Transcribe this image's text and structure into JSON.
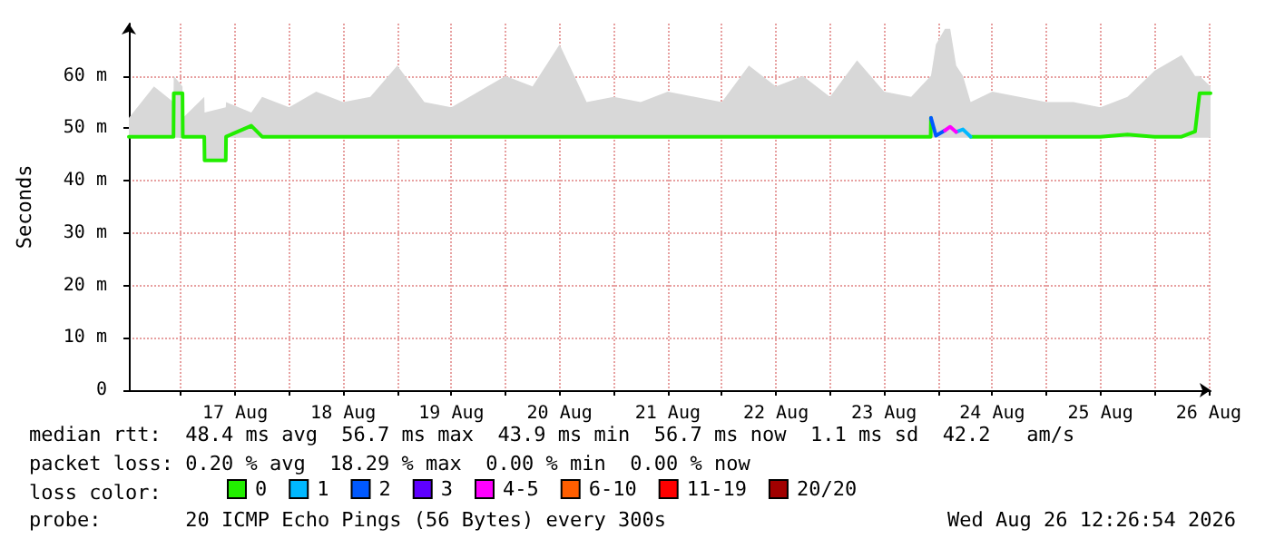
{
  "chart_data": {
    "type": "line",
    "ylabel": "Seconds",
    "legend_title": "loss color:",
    "legend": "bottom",
    "grid": true,
    "marker": "none",
    "line_style": "solid",
    "annotations": [
      "median rtt:  48.4 ms avg  56.7 ms max  43.9 ms min  56.7 ms now  1.1 ms sd  42.2   am/s",
      "packet loss: 0.20 % avg  18.29 % max  0.00 % min  0.00 % now",
      "probe:       20 ICMP Echo Pings (56 Bytes) every 300s",
      "Wed Aug 26 12:26:54 2026"
    ],
    "xlim": [
      "2026-08-16T12:26",
      "2026-08-26T12:26"
    ],
    "xticks": [
      {
        "value": "2026-08-17T00:00",
        "label": null
      },
      {
        "value": "2026-08-17T12:00",
        "label": "17 Aug"
      },
      {
        "value": "2026-08-18T00:00",
        "label": null
      },
      {
        "value": "2026-08-18T12:00",
        "label": "18 Aug"
      },
      {
        "value": "2026-08-19T00:00",
        "label": null
      },
      {
        "value": "2026-08-19T12:00",
        "label": "19 Aug"
      },
      {
        "value": "2026-08-20T00:00",
        "label": null
      },
      {
        "value": "2026-08-20T12:00",
        "label": "20 Aug"
      },
      {
        "value": "2026-08-21T00:00",
        "label": null
      },
      {
        "value": "2026-08-21T12:00",
        "label": "21 Aug"
      },
      {
        "value": "2026-08-22T00:00",
        "label": null
      },
      {
        "value": "2026-08-22T12:00",
        "label": "22 Aug"
      },
      {
        "value": "2026-08-23T00:00",
        "label": null
      },
      {
        "value": "2026-08-23T12:00",
        "label": "23 Aug"
      },
      {
        "value": "2026-08-24T00:00",
        "label": null
      },
      {
        "value": "2026-08-24T12:00",
        "label": "24 Aug"
      },
      {
        "value": "2026-08-25T00:00",
        "label": null
      },
      {
        "value": "2026-08-25T12:00",
        "label": "25 Aug"
      },
      {
        "value": "2026-08-26T00:00",
        "label": null
      },
      {
        "value": "2026-08-26T12:00",
        "label": "26 Aug"
      }
    ],
    "ylim": [
      0,
      70
    ],
    "yticks": [
      0,
      {
        "value": 10,
        "label": "10 m"
      },
      {
        "value": 20,
        "label": "20 m"
      },
      {
        "value": 30,
        "label": "30 m"
      },
      {
        "value": 40,
        "label": "40 m"
      },
      {
        "value": 50,
        "label": "50 m"
      },
      {
        "value": 60,
        "label": "60 m"
      }
    ],
    "x": [
      "2026-08-16T12:26",
      "2026-08-16T18:00",
      "2026-08-16T22:20",
      "2026-08-16T22:24",
      "2026-08-17T00:20",
      "2026-08-17T00:24",
      "2026-08-17T05:10",
      "2026-08-17T05:14",
      "2026-08-17T09:56",
      "2026-08-17T10:00",
      "2026-08-17T15:36",
      "2026-08-17T18:00",
      "2026-08-18T00:00",
      "2026-08-18T06:00",
      "2026-08-18T12:00",
      "2026-08-18T18:00",
      "2026-08-19T00:00",
      "2026-08-19T06:00",
      "2026-08-19T12:00",
      "2026-08-19T18:00",
      "2026-08-20T00:00",
      "2026-08-20T06:00",
      "2026-08-20T12:00",
      "2026-08-20T18:00",
      "2026-08-21T00:00",
      "2026-08-21T06:00",
      "2026-08-21T12:00",
      "2026-08-21T18:00",
      "2026-08-22T00:00",
      "2026-08-22T06:00",
      "2026-08-22T12:00",
      "2026-08-22T18:00",
      "2026-08-23T00:00",
      "2026-08-23T06:00",
      "2026-08-23T12:00",
      "2026-08-23T18:00",
      "2026-08-23T22:20",
      "2026-08-23T22:24",
      "2026-08-23T23:30",
      "2026-08-24T01:30",
      "2026-08-24T02:40",
      "2026-08-24T04:00",
      "2026-08-24T05:30",
      "2026-08-24T07:12",
      "2026-08-24T12:00",
      "2026-08-24T18:00",
      "2026-08-25T00:00",
      "2026-08-25T06:00",
      "2026-08-25T12:00",
      "2026-08-25T18:00",
      "2026-08-26T00:00",
      "2026-08-26T06:00",
      "2026-08-26T09:00",
      "2026-08-26T10:00",
      "2026-08-26T12:26"
    ],
    "series": [
      {
        "name": "0",
        "color": "#22ee00",
        "values": [
          48.4,
          48.4,
          48.4,
          56.7,
          56.7,
          48.4,
          48.4,
          43.9,
          43.9,
          48.4,
          50.5,
          48.4,
          48.4,
          48.4,
          48.4,
          48.4,
          48.4,
          48.4,
          48.4,
          48.4,
          48.4,
          48.4,
          48.4,
          48.4,
          48.4,
          48.4,
          48.4,
          48.4,
          48.4,
          48.4,
          48.4,
          48.4,
          48.4,
          48.4,
          48.4,
          48.4,
          48.4,
          52,
          null,
          null,
          null,
          null,
          null,
          48.4,
          48.4,
          48.4,
          48.4,
          48.4,
          48.4,
          48.8,
          48.4,
          48.4,
          49.4,
          56.7,
          56.7
        ],
        "lower": [
          48.2,
          48.2,
          48.2,
          48.2,
          48.2,
          48.2,
          48.2,
          43.9,
          43.9,
          48.2,
          48.2,
          48.2,
          48.2,
          48.2,
          48.2,
          48.2,
          48.2,
          48.2,
          48.2,
          48.2,
          48.2,
          48.2,
          48.2,
          48.2,
          48.2,
          48.2,
          48.2,
          48.2,
          48.2,
          48.2,
          48.2,
          48.2,
          48.2,
          48.2,
          48.2,
          48.2,
          48.2,
          48.2,
          48.2,
          48.2,
          48.2,
          48.2,
          48.2,
          48.2,
          48.2,
          48.2,
          48.2,
          48.2,
          48.2,
          48.2,
          48.2,
          48.2,
          48.2,
          48.2,
          48.2
        ],
        "upper": [
          52,
          58,
          55,
          60,
          58,
          52,
          56,
          53,
          54,
          55,
          53,
          56,
          54,
          57,
          55,
          56,
          62,
          55,
          54,
          57,
          60,
          58,
          66,
          55,
          56,
          55,
          57,
          56,
          55,
          62,
          58,
          60,
          56,
          63,
          57,
          56,
          60,
          60,
          66,
          69,
          69,
          62,
          60,
          55,
          57,
          56,
          55,
          55,
          54,
          56,
          61,
          64,
          60,
          60,
          58
        ]
      },
      {
        "name": "1",
        "color": "#00b8ff",
        "values": [
          null,
          null,
          null,
          null,
          null,
          null,
          null,
          null,
          null,
          null,
          null,
          null,
          null,
          null,
          null,
          null,
          null,
          null,
          null,
          null,
          null,
          null,
          null,
          null,
          null,
          null,
          null,
          null,
          null,
          null,
          null,
          null,
          null,
          null,
          null,
          null,
          null,
          null,
          null,
          null,
          null,
          49.3,
          49.8,
          48.4,
          null,
          null,
          null,
          null,
          null,
          null,
          null,
          null,
          null,
          null,
          null
        ]
      },
      {
        "name": "2",
        "color": "#0059ff",
        "values": [
          null,
          null,
          null,
          null,
          null,
          null,
          null,
          null,
          null,
          null,
          null,
          null,
          null,
          null,
          null,
          null,
          null,
          null,
          null,
          null,
          null,
          null,
          null,
          null,
          null,
          null,
          null,
          null,
          null,
          null,
          null,
          null,
          null,
          null,
          null,
          null,
          null,
          52,
          48.6,
          49.6,
          null,
          null,
          null,
          null,
          null,
          null,
          null,
          null,
          null,
          null,
          null,
          null,
          null,
          null,
          null
        ]
      },
      {
        "name": "3",
        "color": "#5e00ff",
        "values": [
          null,
          null,
          null,
          null,
          null,
          null,
          null,
          null,
          null,
          null,
          null,
          null,
          null,
          null,
          null,
          null,
          null,
          null,
          null,
          null,
          null,
          null,
          null,
          null,
          null,
          null,
          null,
          null,
          null,
          null,
          null,
          null,
          null,
          null,
          null,
          null,
          null,
          null,
          null,
          null,
          null,
          null,
          null,
          null,
          null,
          null,
          null,
          null,
          null,
          null,
          null,
          null,
          null,
          null,
          null
        ]
      },
      {
        "name": "4-5",
        "color": "#ff00ff",
        "values": [
          null,
          null,
          null,
          null,
          null,
          null,
          null,
          null,
          null,
          null,
          null,
          null,
          null,
          null,
          null,
          null,
          null,
          null,
          null,
          null,
          null,
          null,
          null,
          null,
          null,
          null,
          null,
          null,
          null,
          null,
          null,
          null,
          null,
          null,
          null,
          null,
          null,
          null,
          null,
          49.6,
          50.3,
          49.3,
          null,
          null,
          null,
          null,
          null,
          null,
          null,
          null,
          null,
          null,
          null,
          null,
          null
        ]
      },
      {
        "name": "6-10",
        "color": "#ff5e00",
        "values": [
          null,
          null,
          null,
          null,
          null,
          null,
          null,
          null,
          null,
          null,
          null,
          null,
          null,
          null,
          null,
          null,
          null,
          null,
          null,
          null,
          null,
          null,
          null,
          null,
          null,
          null,
          null,
          null,
          null,
          null,
          null,
          null,
          null,
          null,
          null,
          null,
          null,
          null,
          null,
          null,
          null,
          null,
          null,
          null,
          null,
          null,
          null,
          null,
          null,
          null,
          null,
          null,
          null,
          null,
          null
        ]
      },
      {
        "name": "11-19",
        "color": "#ff0000",
        "values": [
          null,
          null,
          null,
          null,
          null,
          null,
          null,
          null,
          null,
          null,
          null,
          null,
          null,
          null,
          null,
          null,
          null,
          null,
          null,
          null,
          null,
          null,
          null,
          null,
          null,
          null,
          null,
          null,
          null,
          null,
          null,
          null,
          null,
          null,
          null,
          null,
          null,
          null,
          null,
          null,
          null,
          null,
          null,
          null,
          null,
          null,
          null,
          null,
          null,
          null,
          null,
          null,
          null,
          null,
          null
        ]
      },
      {
        "name": "20/20",
        "color": "#a10000",
        "values": [
          null,
          null,
          null,
          null,
          null,
          null,
          null,
          null,
          null,
          null,
          null,
          null,
          null,
          null,
          null,
          null,
          null,
          null,
          null,
          null,
          null,
          null,
          null,
          null,
          null,
          null,
          null,
          null,
          null,
          null,
          null,
          null,
          null,
          null,
          null,
          null,
          null,
          null,
          null,
          null,
          null,
          null,
          null,
          null,
          null,
          null,
          null,
          null,
          null,
          null,
          null,
          null,
          null,
          null,
          null
        ]
      }
    ]
  }
}
